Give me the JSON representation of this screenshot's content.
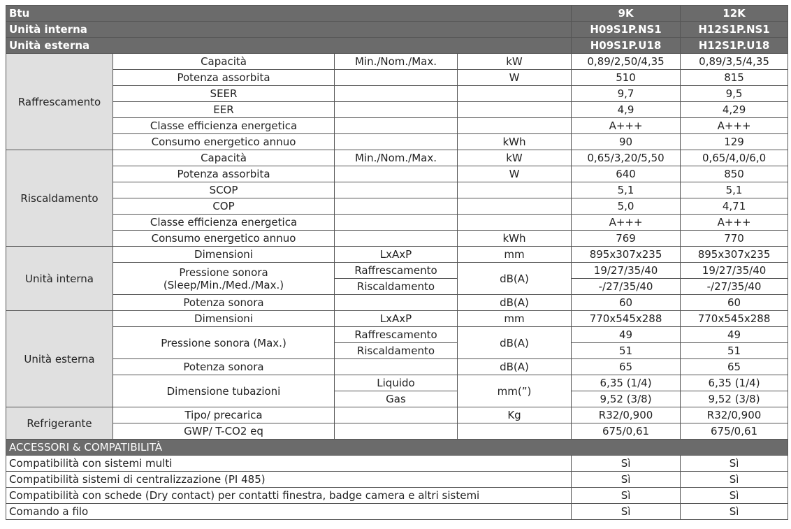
{
  "header": {
    "rows": [
      {
        "label": "Btu",
        "v9": "9K",
        "v12": "12K"
      },
      {
        "label": "Unità interna",
        "v9": "H09S1P.NS1",
        "v12": "H12S1P.NS1"
      },
      {
        "label": "Unità esterna",
        "v9": "H09S1P.U18",
        "v12": "H12S1P.U18"
      }
    ]
  },
  "sections": [
    {
      "group": "Raffrescamento",
      "rows": [
        {
          "name": "Capacità",
          "sub": "Min./Nom./Max.",
          "unit": "kW",
          "v9": "0,89/2,50/4,35",
          "v12": "0,89/3,5/4,35"
        },
        {
          "name": "Potenza assorbita",
          "unit": "W",
          "v9": "510",
          "v12": "815"
        },
        {
          "name": "SEER",
          "v9": "9,7",
          "v12": "9,5"
        },
        {
          "name": "EER",
          "v9": "4,9",
          "v12": "4,29"
        },
        {
          "name": "Classe efficienza energetica",
          "v9": "A+++",
          "v12": "A+++"
        },
        {
          "name": "Consumo energetico annuo",
          "unit": "kWh",
          "v9": "90",
          "v12": "129"
        }
      ]
    },
    {
      "group": "Riscaldamento",
      "rows": [
        {
          "name": "Capacità",
          "sub": "Min./Nom./Max.",
          "unit": "kW",
          "v9": "0,65/3,20/5,50",
          "v12": "0,65/4,0/6,0"
        },
        {
          "name": "Potenza assorbita",
          "unit": "W",
          "v9": "640",
          "v12": "850"
        },
        {
          "name": "SCOP",
          "v9": "5,1",
          "v12": "5,1"
        },
        {
          "name": "COP",
          "v9": "5,0",
          "v12": "4,71"
        },
        {
          "name": "Classe efficienza energetica",
          "v9": "A+++",
          "v12": "A+++"
        },
        {
          "name": "Consumo energetico annuo",
          "unit": "kWh",
          "v9": "769",
          "v12": "770"
        }
      ]
    },
    {
      "group": "Unità interna",
      "rows": [
        {
          "name": "Dimensioni",
          "sub": "LxAxP",
          "unit": "mm",
          "v9": "895x307x235",
          "v12": "895x307x235"
        },
        {
          "name": "Pressione sonora",
          "name2": "(Sleep/Min./Med./Max.)",
          "unit": "dB(A)",
          "parts": [
            {
              "sub": "Raffrescamento",
              "v9": "19/27/35/40",
              "v12": "19/27/35/40"
            },
            {
              "sub": "Riscaldamento",
              "v9": "-/27/35/40",
              "v12": "-/27/35/40"
            }
          ]
        },
        {
          "name": "Potenza sonora",
          "unit": "dB(A)",
          "v9": "60",
          "v12": "60"
        }
      ]
    },
    {
      "group": "Unità esterna",
      "rows": [
        {
          "name": "Dimensioni",
          "sub": "LxAxP",
          "unit": "mm",
          "v9": "770x545x288",
          "v12": "770x545x288"
        },
        {
          "name": "Pressione sonora (Max.)",
          "unit": "dB(A)",
          "parts": [
            {
              "sub": "Raffrescamento",
              "v9": "49",
              "v12": "49"
            },
            {
              "sub": "Riscaldamento",
              "v9": "51",
              "v12": "51"
            }
          ]
        },
        {
          "name": "Potenza sonora",
          "unit": "dB(A)",
          "v9": "65",
          "v12": "65"
        },
        {
          "name": "Dimensione tubazioni",
          "unit": "mm(”)",
          "parts": [
            {
              "sub": "Liquido",
              "v9": "6,35 (1/4)",
              "v12": "6,35 (1/4)"
            },
            {
              "sub": "Gas",
              "v9": "9,52 (3/8)",
              "v12": "9,52 (3/8)"
            }
          ]
        }
      ]
    },
    {
      "group": "Refrigerante",
      "rows": [
        {
          "name": "Tipo/ precarica",
          "unit": "Kg",
          "v9": "R32/0,900",
          "v12": "R32/0,900"
        },
        {
          "name": "GWP/ T-CO2 eq",
          "v9": "675/0,61",
          "v12": "675/0,61"
        }
      ]
    }
  ],
  "accessories": {
    "title": "ACCESSORI & COMPATIBILITÀ",
    "rows": [
      {
        "label": "Compatibilità con sistemi multi",
        "v9": "Sì",
        "v12": "Sì"
      },
      {
        "label": "Compatibilità sistemi di centralizzazione (PI 485)",
        "v9": "Sì",
        "v12": "Sì"
      },
      {
        "label": "Compatibilità con schede (Dry contact) per contatti finestra, badge camera e altri sistemi",
        "v9": "Sì",
        "v12": "Sì"
      },
      {
        "label": "Comando a filo",
        "v9": "Sì",
        "v12": "Sì"
      }
    ]
  }
}
